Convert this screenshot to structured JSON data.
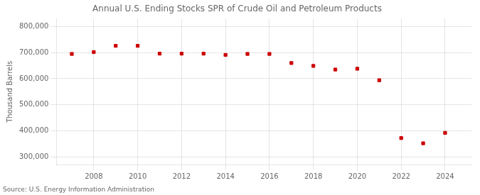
{
  "chart_data": {
    "type": "scatter",
    "title": "Annual U.S. Ending Stocks SPR of Crude Oil and Petroleum Products",
    "ylabel": "Thousand Barrels",
    "annotation": "Source: U.S. Energy Information Administration",
    "x": [
      2007,
      2008,
      2009,
      2010,
      2011,
      2012,
      2013,
      2014,
      2015,
      2016,
      2017,
      2018,
      2019,
      2020,
      2021,
      2022,
      2023,
      2024
    ],
    "values": [
      695000,
      702000,
      726000,
      726000,
      696000,
      696000,
      696000,
      691000,
      695000,
      695000,
      660000,
      649000,
      635000,
      638000,
      594000,
      372000,
      352000,
      392000
    ],
    "color": "#cc0000",
    "marker": "square",
    "xlim": [
      2006.3,
      2025.2
    ],
    "xticks": [
      2008,
      2010,
      2012,
      2014,
      2016,
      2018,
      2020,
      2022,
      2024
    ],
    "ylim": [
      270000,
      830000
    ],
    "yticks": [
      {
        "value": 300000,
        "label": "300,000"
      },
      {
        "value": 400000,
        "label": "400,000"
      },
      {
        "value": 500000,
        "label": "500,000"
      },
      {
        "value": 600000,
        "label": "600,000"
      },
      {
        "value": 700000,
        "label": "700,000"
      },
      {
        "value": 800000,
        "label": "800,000"
      }
    ],
    "grid": true
  }
}
